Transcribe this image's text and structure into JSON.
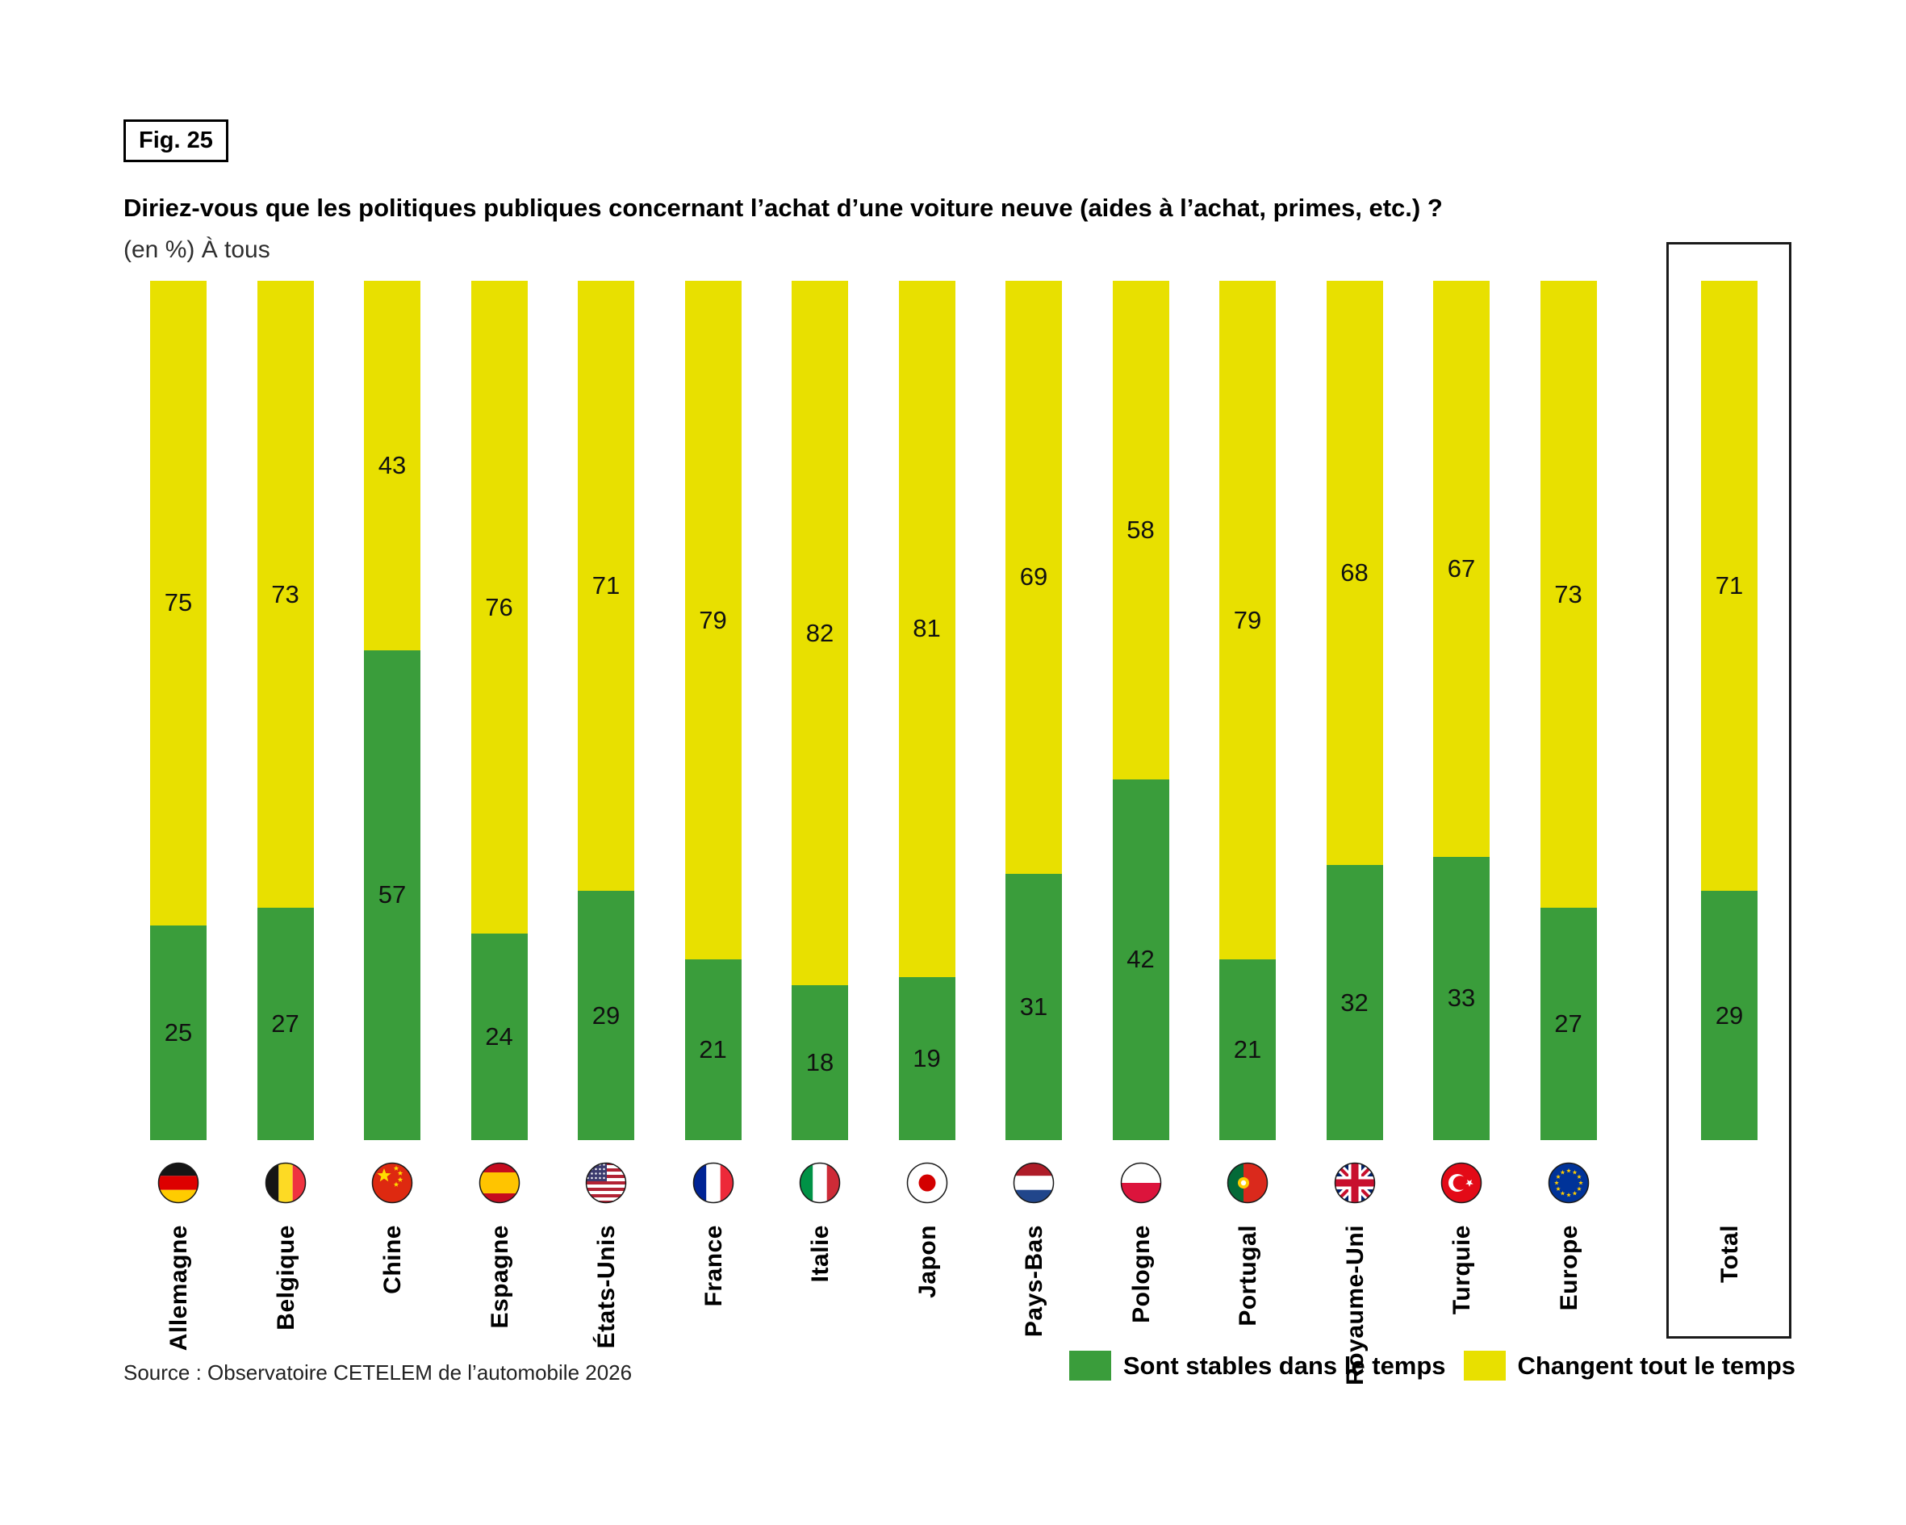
{
  "figure": {
    "tag": "Fig. 25",
    "title": "Diriez-vous que les politiques publiques concernant l’achat d’une voiture neuve (aides à l’achat, primes, etc.) ?",
    "subtitle": "(en %) À tous",
    "source": "Source : Observatoire CETELEM de l’automobile 2026"
  },
  "chart_data": {
    "type": "bar",
    "stacked": true,
    "unit": "percent",
    "ylim": [
      0,
      100
    ],
    "grid": false,
    "legend_position": "bottom-right",
    "categories": [
      "Allemagne",
      "Belgique",
      "Chine",
      "Espagne",
      "États-Unis",
      "France",
      "Italie",
      "Japon",
      "Pays-Bas",
      "Pologne",
      "Portugal",
      "Royaume-Uni",
      "Turquie",
      "Europe",
      "Total"
    ],
    "series": [
      {
        "name": "Sont stables dans le temps",
        "color": "#3a9d3b",
        "values": [
          25,
          27,
          57,
          24,
          29,
          21,
          18,
          19,
          31,
          42,
          21,
          32,
          33,
          27,
          29
        ]
      },
      {
        "name": "Changent tout le temps",
        "color": "#e8e000",
        "values": [
          75,
          73,
          43,
          76,
          71,
          79,
          82,
          81,
          69,
          58,
          79,
          68,
          67,
          73,
          71
        ]
      }
    ],
    "highlight": {
      "category": "Total",
      "style": "outlined-box"
    }
  },
  "flags": [
    "flag-allemagne",
    "flag-belgique",
    "flag-chine",
    "flag-espagne",
    "flag-etats-unis",
    "flag-france",
    "flag-italie",
    "flag-japon",
    "flag-pays-bas",
    "flag-pologne",
    "flag-portugal",
    "flag-royaume-uni",
    "flag-turquie",
    "flag-europe",
    null
  ],
  "colors": {
    "stable_green": "#3a9d3b",
    "change_yellow": "#e8e000",
    "text": "#000000",
    "box_border": "#1a1a1a"
  }
}
